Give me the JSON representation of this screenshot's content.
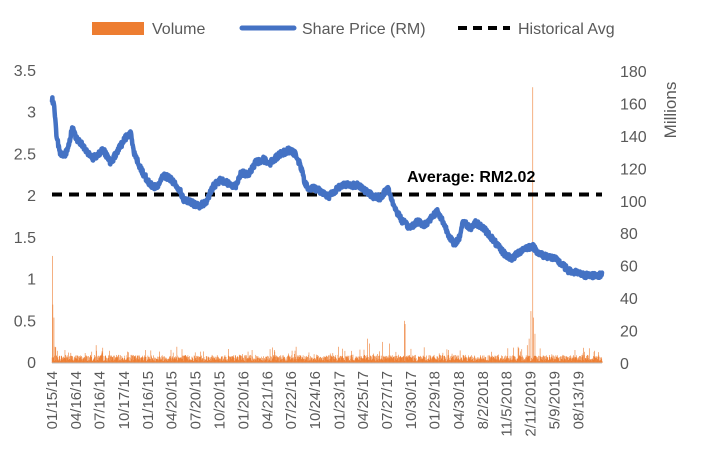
{
  "chart_data": {
    "type": "line",
    "title": "",
    "legend": {
      "placement": "top",
      "entries": [
        {
          "label": "Volume",
          "kind": "bar",
          "color": "#ED7D31"
        },
        {
          "label": "Share Price (RM)",
          "kind": "line",
          "color": "#4472C4"
        },
        {
          "label": "Historical Avg",
          "kind": "dashed-line",
          "color": "#000000"
        }
      ]
    },
    "y_left": {
      "min": 0,
      "max": 3.5,
      "ticks": [
        "0",
        "0.5",
        "1",
        "1.5",
        "2",
        "2.5",
        "3",
        "3.5"
      ],
      "values": [
        0,
        0.5,
        1,
        1.5,
        2,
        2.5,
        3,
        3.5
      ]
    },
    "y_right": {
      "min": 0,
      "max": 180,
      "label": "Millions",
      "ticks": [
        "0",
        "20",
        "40",
        "60",
        "80",
        "100",
        "120",
        "140",
        "160",
        "180"
      ],
      "values": [
        0,
        20,
        40,
        60,
        80,
        100,
        120,
        140,
        160,
        180
      ]
    },
    "x_tick_labels": [
      "01/15/14",
      "04/16/14",
      "07/16/14",
      "10/17/14",
      "01/16/15",
      "04/20/15",
      "07/20/15",
      "10/20/15",
      "01/20/16",
      "04/21/16",
      "07/22/16",
      "10/24/16",
      "01/23/17",
      "04/25/17",
      "07/27/17",
      "10/30/17",
      "01/29/18",
      "04/30/18",
      "8/2/2018",
      "11/5/2018",
      "2/11/2019",
      "5/9/2019",
      "08/13/19"
    ],
    "x_count": 1500,
    "price_series": {
      "name": "Share Price (RM)",
      "knots": [
        [
          0,
          3.17
        ],
        [
          5,
          3.1
        ],
        [
          12,
          2.75
        ],
        [
          22,
          2.5
        ],
        [
          35,
          2.48
        ],
        [
          48,
          2.65
        ],
        [
          55,
          2.82
        ],
        [
          65,
          2.7
        ],
        [
          85,
          2.6
        ],
        [
          110,
          2.45
        ],
        [
          140,
          2.55
        ],
        [
          160,
          2.4
        ],
        [
          180,
          2.55
        ],
        [
          200,
          2.7
        ],
        [
          215,
          2.75
        ],
        [
          225,
          2.5
        ],
        [
          245,
          2.3
        ],
        [
          265,
          2.15
        ],
        [
          285,
          2.1
        ],
        [
          305,
          2.25
        ],
        [
          325,
          2.2
        ],
        [
          345,
          2.1
        ],
        [
          360,
          1.95
        ],
        [
          380,
          1.92
        ],
        [
          400,
          1.88
        ],
        [
          420,
          1.93
        ],
        [
          440,
          2.12
        ],
        [
          460,
          2.2
        ],
        [
          480,
          2.15
        ],
        [
          500,
          2.12
        ],
        [
          515,
          2.28
        ],
        [
          535,
          2.25
        ],
        [
          555,
          2.4
        ],
        [
          575,
          2.44
        ],
        [
          595,
          2.4
        ],
        [
          620,
          2.5
        ],
        [
          645,
          2.55
        ],
        [
          665,
          2.5
        ],
        [
          680,
          2.32
        ],
        [
          690,
          2.15
        ],
        [
          700,
          2.08
        ],
        [
          715,
          2.1
        ],
        [
          735,
          2.05
        ],
        [
          755,
          2.0
        ],
        [
          775,
          2.08
        ],
        [
          795,
          2.15
        ],
        [
          815,
          2.12
        ],
        [
          835,
          2.14
        ],
        [
          855,
          2.06
        ],
        [
          875,
          2.0
        ],
        [
          895,
          1.98
        ],
        [
          915,
          2.1
        ],
        [
          935,
          1.85
        ],
        [
          955,
          1.7
        ],
        [
          975,
          1.62
        ],
        [
          995,
          1.7
        ],
        [
          1015,
          1.65
        ],
        [
          1035,
          1.75
        ],
        [
          1050,
          1.82
        ],
        [
          1065,
          1.7
        ],
        [
          1080,
          1.55
        ],
        [
          1095,
          1.42
        ],
        [
          1110,
          1.5
        ],
        [
          1120,
          1.7
        ],
        [
          1140,
          1.62
        ],
        [
          1155,
          1.68
        ],
        [
          1175,
          1.62
        ],
        [
          1195,
          1.52
        ],
        [
          1215,
          1.4
        ],
        [
          1235,
          1.3
        ],
        [
          1255,
          1.25
        ],
        [
          1270,
          1.32
        ],
        [
          1290,
          1.38
        ],
        [
          1310,
          1.4
        ],
        [
          1330,
          1.3
        ],
        [
          1350,
          1.28
        ],
        [
          1370,
          1.25
        ],
        [
          1390,
          1.18
        ],
        [
          1410,
          1.1
        ],
        [
          1430,
          1.08
        ],
        [
          1450,
          1.05
        ]
      ]
    },
    "average_line": {
      "name": "Historical Avg",
      "value": 2.02,
      "annotation": "Average: RM2.02"
    },
    "volume_series": {
      "name": "Volume",
      "unit": "Millions",
      "typical_range": [
        1,
        5
      ],
      "spikes": [
        [
          1,
          66
        ],
        [
          2,
          36
        ],
        [
          5,
          28
        ],
        [
          8,
          10
        ],
        [
          35,
          8
        ],
        [
          120,
          11
        ],
        [
          255,
          8
        ],
        [
          340,
          10
        ],
        [
          405,
          7
        ],
        [
          545,
          8
        ],
        [
          665,
          10
        ],
        [
          780,
          10
        ],
        [
          860,
          15
        ],
        [
          865,
          12
        ],
        [
          900,
          13
        ],
        [
          920,
          12
        ],
        [
          960,
          26
        ],
        [
          962,
          24
        ],
        [
          1080,
          8
        ],
        [
          1270,
          10
        ],
        [
          1295,
          11
        ],
        [
          1300,
          15
        ],
        [
          1305,
          32
        ],
        [
          1310,
          170
        ],
        [
          1312,
          28
        ],
        [
          1316,
          18
        ],
        [
          1330,
          9
        ],
        [
          1425,
          8
        ],
        [
          1447,
          6
        ]
      ]
    }
  }
}
